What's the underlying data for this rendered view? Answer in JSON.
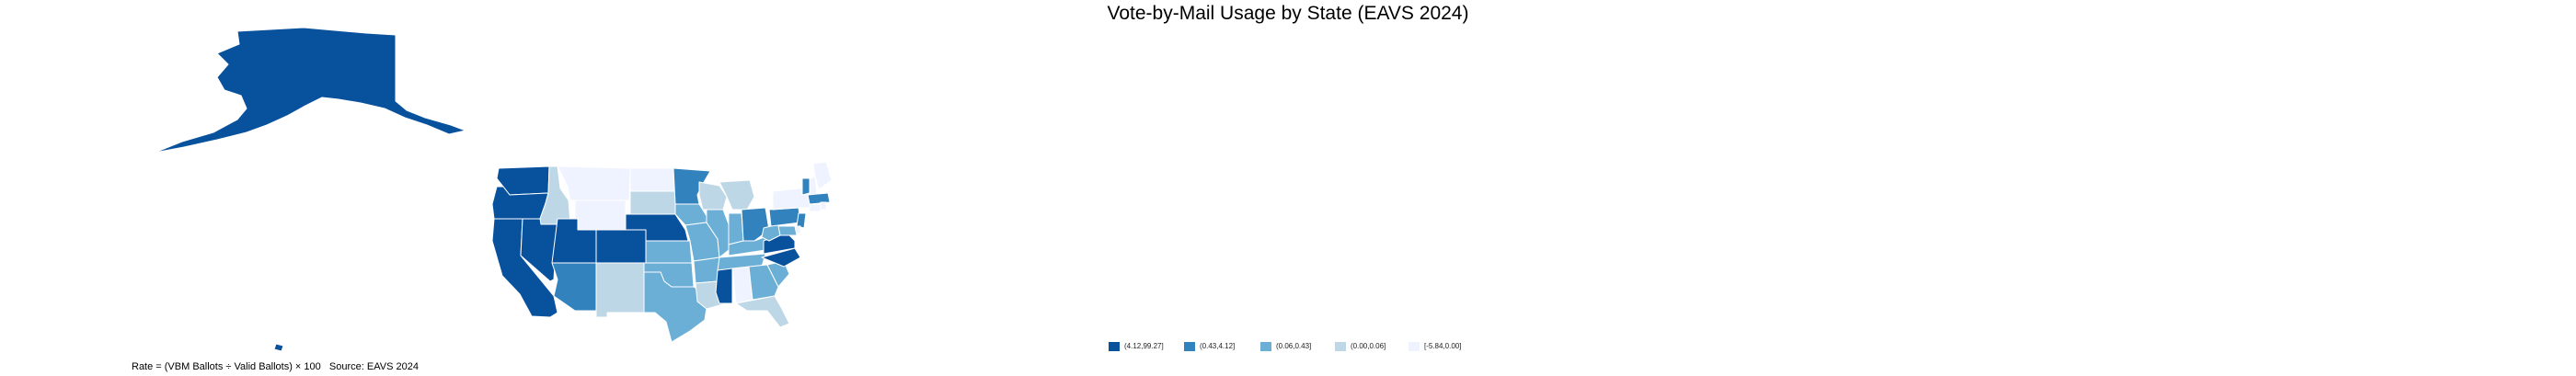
{
  "title": "Vote-by-Mail Usage by State (EAVS 2024)",
  "footnote": "Rate = (VBM Ballots ÷ Valid Ballots) × 100   Source: EAVS 2024",
  "legend": {
    "items": [
      {
        "label": "(4.12,99.27]",
        "color": "#08519c"
      },
      {
        "label": "(0.43,4.12]",
        "color": "#3182bd"
      },
      {
        "label": "(0.06,0.43]",
        "color": "#6baed6"
      },
      {
        "label": "(0.00,0.06]",
        "color": "#bdd7e7"
      },
      {
        "label": "[-5.84,0.00]",
        "color": "#eff3ff"
      }
    ]
  },
  "map_data": {
    "geography": "United States (by state)",
    "classification": {
      "AK": "(4.12,99.27]",
      "HI": "(4.12,99.27]",
      "WA": "(4.12,99.27]",
      "OR": "(4.12,99.27]",
      "CA": "(4.12,99.27]",
      "NV": "(4.12,99.27]",
      "UT": "(4.12,99.27]",
      "CO": "(4.12,99.27]",
      "NE": "(4.12,99.27]",
      "MS": "(4.12,99.27]",
      "VA": "(4.12,99.27]",
      "NC": "(4.12,99.27]",
      "AZ": "(0.43,4.12]",
      "MN": "(0.43,4.12]",
      "OH": "(0.43,4.12]",
      "PA": "(0.43,4.12]",
      "NJ": "(0.43,4.12]",
      "VT": "(0.43,4.12]",
      "MA": "(0.43,4.12]",
      "KS": "(0.06,0.43]",
      "MO": "(0.06,0.43]",
      "IA": "(0.06,0.43]",
      "IL": "(0.06,0.43]",
      "OK": "(0.06,0.43]",
      "TX": "(0.06,0.43]",
      "AR": "(0.06,0.43]",
      "TN": "(0.06,0.43]",
      "KY": "(0.06,0.43]",
      "GA": "(0.06,0.43]",
      "SC": "(0.06,0.43]",
      "WV": "(0.06,0.43]",
      "MD": "(0.06,0.43]",
      "IN": "(0.06,0.43]",
      "ID": "(0.00,0.06]",
      "NM": "(0.00,0.06]",
      "SD": "(0.00,0.06]",
      "WI": "(0.00,0.06]",
      "LA": "(0.00,0.06]",
      "FL": "(0.00,0.06]",
      "MI": "(0.00,0.06]",
      "MT": "[-5.84,0.00]",
      "WY": "[-5.84,0.00]",
      "ND": "[-5.84,0.00]",
      "AL": "[-5.84,0.00]",
      "NY": "[-5.84,0.00]",
      "ME": "[-5.84,0.00]",
      "NH": "[-5.84,0.00]",
      "CT": "[-5.84,0.00]",
      "RI": "[-5.84,0.00]",
      "DE": "[-5.84,0.00]"
    }
  }
}
